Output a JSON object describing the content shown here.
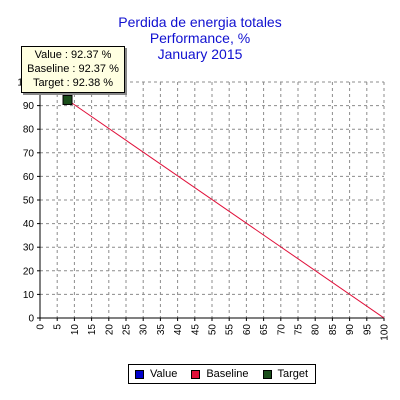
{
  "chart_data": {
    "type": "line",
    "title_lines": [
      "Perdida de energia totales",
      "Performance, %",
      "January 2015"
    ],
    "x_ticks": [
      0,
      5,
      10,
      15,
      20,
      25,
      30,
      35,
      40,
      45,
      50,
      55,
      60,
      65,
      70,
      75,
      80,
      85,
      90,
      95,
      100
    ],
    "y_ticks": [
      0,
      10,
      20,
      30,
      40,
      50,
      60,
      70,
      80,
      90,
      100
    ],
    "xlim": [
      0,
      100
    ],
    "ylim": [
      0,
      100
    ],
    "grid": true,
    "legend_position": "bottom",
    "series": [
      {
        "name": "Value",
        "color": "#0000cc",
        "x": [],
        "y": []
      },
      {
        "name": "Baseline",
        "color": "#e0103a",
        "x": [
          8,
          100
        ],
        "y": [
          92.37,
          0
        ]
      },
      {
        "name": "Target",
        "color": "#1a4d1a",
        "x": [
          8
        ],
        "y": [
          92.38
        ]
      }
    ],
    "tooltip": [
      "Value : 92.37 %",
      "Baseline : 92.37 %",
      "Target : 92.38 %"
    ]
  }
}
